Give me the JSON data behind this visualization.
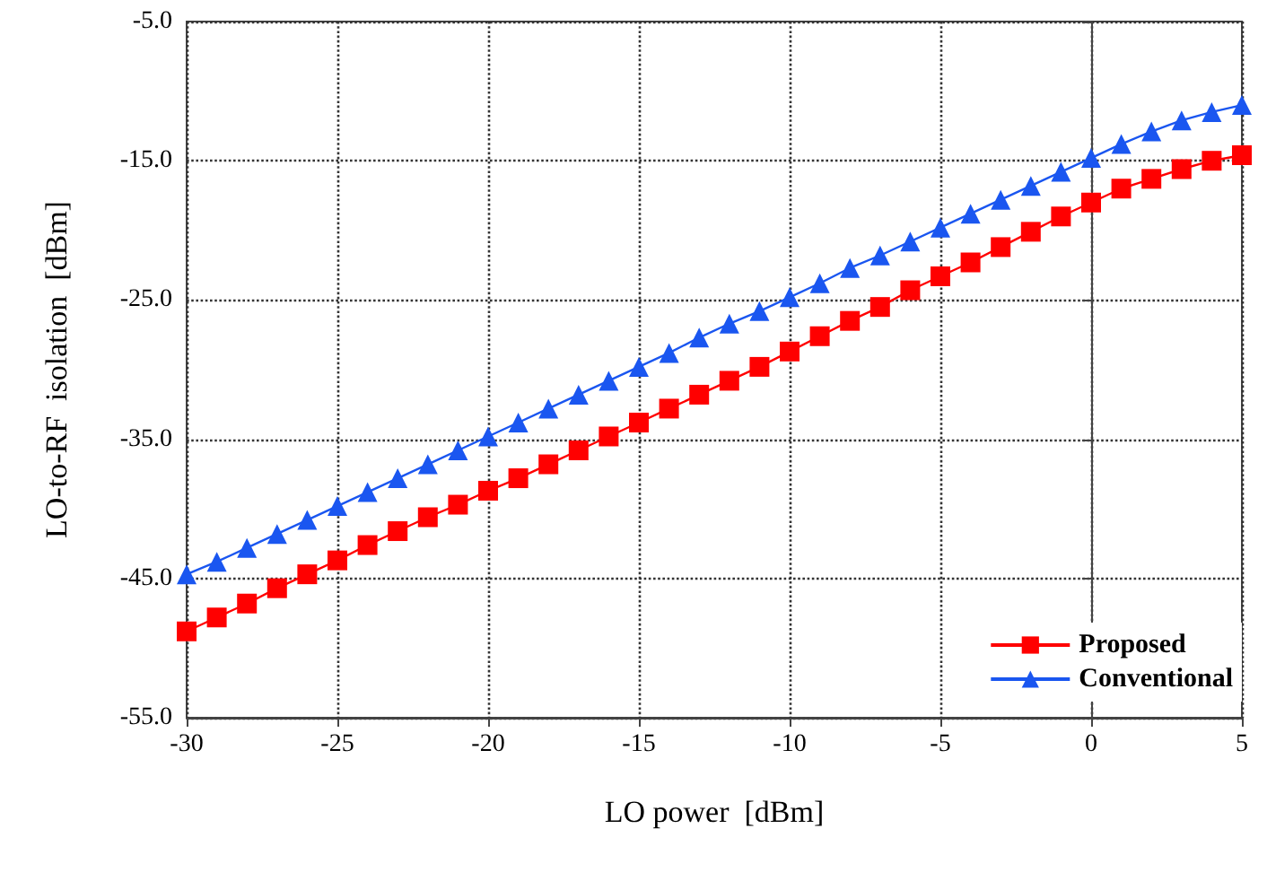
{
  "chart_data": {
    "type": "line",
    "xlabel": "LO power  [dBm]",
    "ylabel": "LO-to-RF  isolation  [dBm]",
    "x": [
      -30,
      -29,
      -28,
      -27,
      -26,
      -25,
      -24,
      -23,
      -22,
      -21,
      -20,
      -19,
      -18,
      -17,
      -16,
      -15,
      -14,
      -13,
      -12,
      -11,
      -10,
      -9,
      -8,
      -7,
      -6,
      -5,
      -4,
      -3,
      -2,
      -1,
      0,
      1,
      2,
      3,
      4,
      5
    ],
    "series": [
      {
        "name": "Proposed",
        "color": "#ff0000",
        "marker": "square",
        "values": [
          -48.8,
          -47.8,
          -46.8,
          -45.7,
          -44.7,
          -43.7,
          -42.6,
          -41.6,
          -40.6,
          -39.7,
          -38.7,
          -37.8,
          -36.8,
          -35.8,
          -34.8,
          -33.8,
          -32.8,
          -31.8,
          -30.8,
          -29.8,
          -28.7,
          -27.6,
          -26.5,
          -25.5,
          -24.3,
          -23.3,
          -22.3,
          -21.2,
          -20.1,
          -19.0,
          -18.0,
          -17.0,
          -16.3,
          -15.6,
          -15.0,
          -14.6
        ]
      },
      {
        "name": "Conventional",
        "color": "#1a56f0",
        "marker": "triangle",
        "values": [
          -44.7,
          -43.8,
          -42.8,
          -41.8,
          -40.8,
          -39.8,
          -38.8,
          -37.8,
          -36.8,
          -35.8,
          -34.8,
          -33.8,
          -32.8,
          -31.8,
          -30.8,
          -29.8,
          -28.8,
          -27.7,
          -26.7,
          -25.8,
          -24.8,
          -23.8,
          -22.7,
          -21.8,
          -20.8,
          -19.8,
          -18.8,
          -17.8,
          -16.8,
          -15.8,
          -14.8,
          -13.8,
          -12.9,
          -12.1,
          -11.5,
          -11.0
        ]
      }
    ],
    "xlim": [
      -30,
      5
    ],
    "xticks": [
      -30,
      -25,
      -20,
      -15,
      -10,
      -5,
      0,
      5
    ],
    "ylim": [
      -55,
      -5
    ],
    "yticks": [
      {
        "value": -55,
        "label": "-55.0"
      },
      {
        "value": -45,
        "label": "-45.0"
      },
      {
        "value": -35,
        "label": "-35.0"
      },
      {
        "value": -25,
        "label": "-25.0"
      },
      {
        "value": -15,
        "label": "-15.0"
      },
      {
        "value": -5,
        "label": "-5.0"
      }
    ],
    "grid": true,
    "legend": "bottom right",
    "line_style": "solid"
  }
}
